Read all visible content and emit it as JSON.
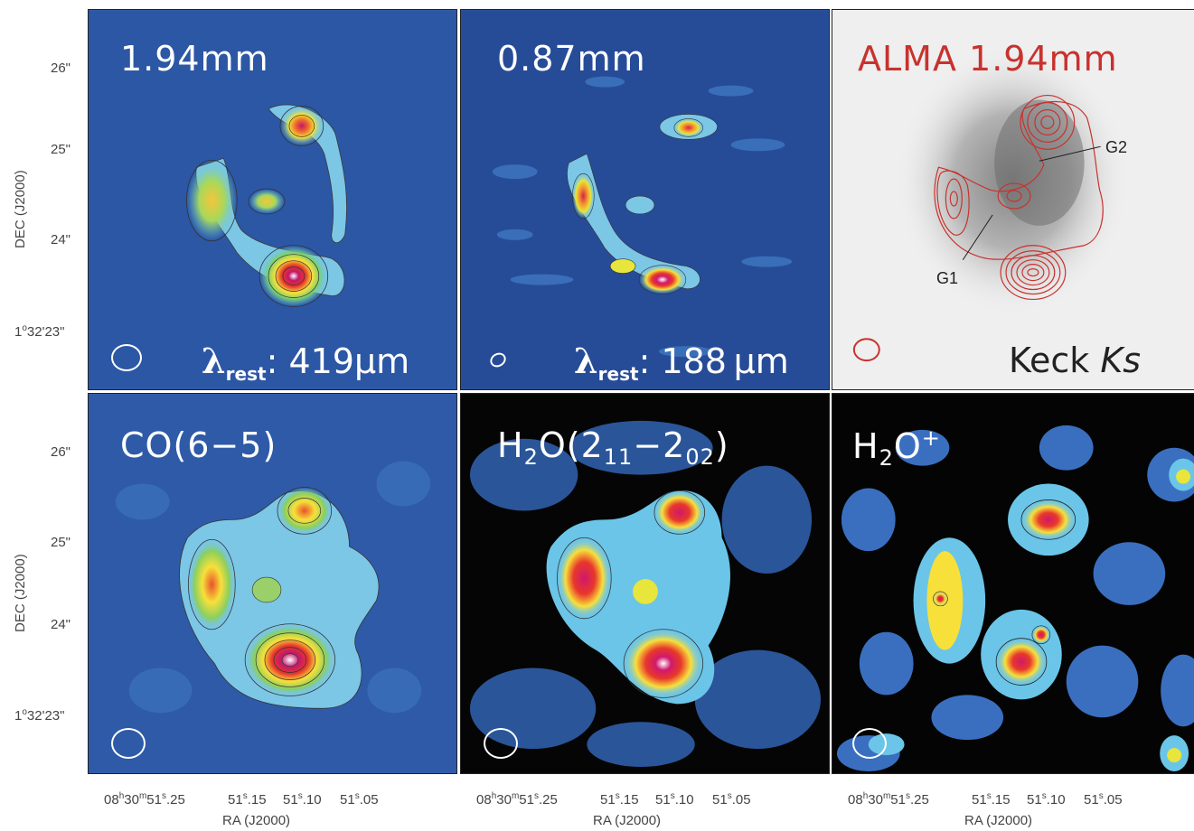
{
  "panels": [
    {
      "id": "p1",
      "label": "1.94mm",
      "lambda_value": ": 419μm",
      "lambda_symbol": "λ",
      "lambda_sub": "rest"
    },
    {
      "id": "p2",
      "label": "0.87mm",
      "lambda_value": ": 188 μm",
      "lambda_symbol": "λ",
      "lambda_sub": "rest"
    },
    {
      "id": "p3",
      "label": "ALMA 1.94mm",
      "footer": "Keck ",
      "footer_italic": "Ks",
      "galaxy_labels": [
        "G2",
        "G1"
      ]
    },
    {
      "id": "p4",
      "label": "CO(6−5)"
    },
    {
      "id": "p5",
      "label_main": "H",
      "label_sub1": "2",
      "label_mid": "O(2",
      "label_sub2": "11",
      "label_dash": "−2",
      "label_sub3": "02",
      "label_end": ")"
    },
    {
      "id": "p6",
      "label_main": "H",
      "label_sub1": "2",
      "label_mid": "O",
      "label_sup": "+"
    }
  ],
  "y_ticks": [
    {
      "text": "26\""
    },
    {
      "text": "25\""
    },
    {
      "text": "24\""
    },
    {
      "text_deg": "1",
      "text_rest": "32'23\""
    }
  ],
  "x_ticks": [
    {
      "a": "08",
      "ah": "h",
      "b": "30",
      "bm": "m",
      "c": "51",
      "cs": "s",
      ".d": ".25"
    },
    {
      "a": "51",
      "as": "s",
      "b": ".15"
    },
    {
      "a": "51",
      "as": "s",
      "b": ".10"
    },
    {
      "a": "51",
      "as": "s",
      "b": ".05"
    }
  ],
  "x_tick_texts": [
    "08h30m51s.25",
    "51s.15",
    "51s.10",
    "51s.05"
  ],
  "axis": {
    "x_title": "RA (J2000)",
    "y_title": "DEC (J2000)"
  },
  "colors": {
    "bg_blue": "#2b56a3",
    "contour_red": "#c8322e",
    "white": "#ffffff"
  }
}
